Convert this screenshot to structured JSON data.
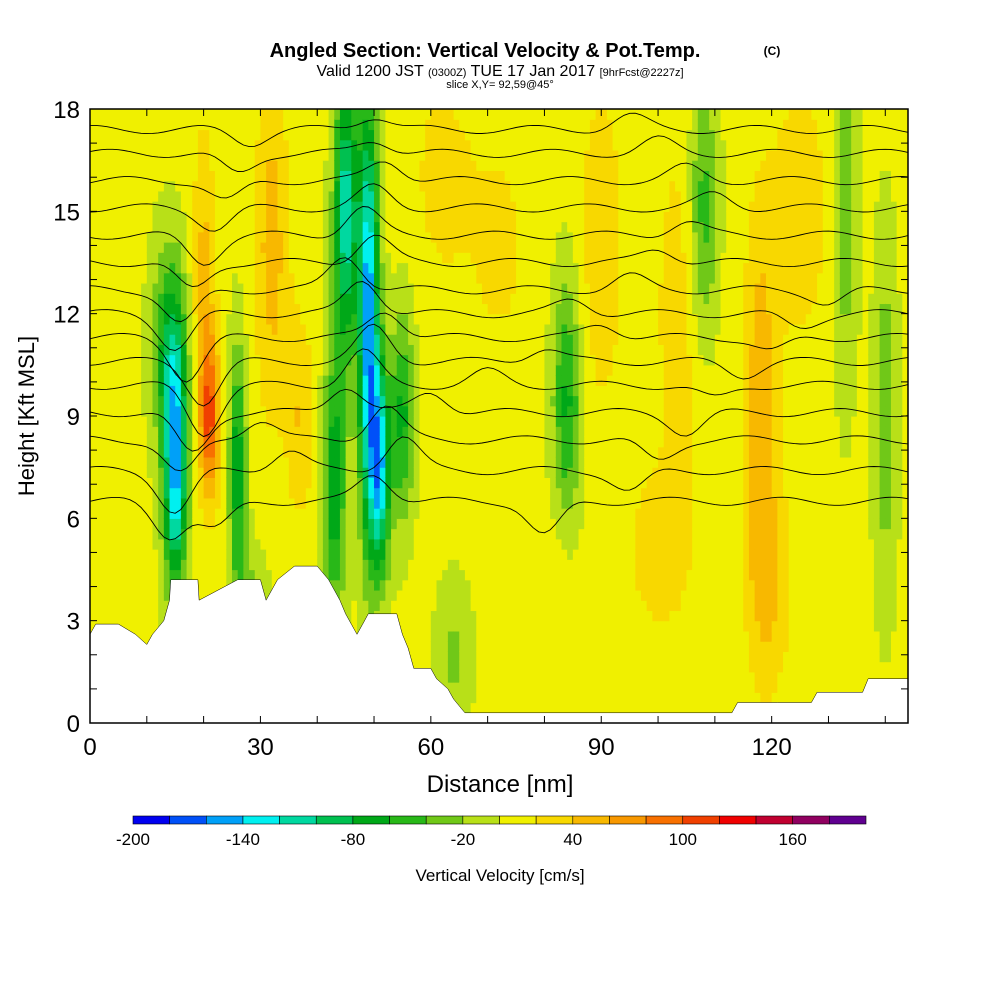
{
  "chart_data": {
    "type": "heatmap",
    "title": "Angled Section: Vertical Velocity & Pot.Temp.",
    "title_unit": "(C)",
    "subtitle": {
      "valid": "Valid 1200 JST",
      "utc": "(0300Z)",
      "date": "TUE 17 Jan 2017",
      "forecast": "[9hrFcst@2227z]"
    },
    "slice": "slice X,Y= 92,59@45°",
    "xlabel": "Distance [nm]",
    "ylabel": "Height [Kft MSL]",
    "xlim": [
      0,
      144
    ],
    "ylim": [
      0,
      18
    ],
    "x_ticks": [
      0,
      30,
      60,
      90,
      120
    ],
    "y_ticks": [
      0,
      3,
      6,
      9,
      12,
      15,
      18
    ],
    "colorbar": {
      "label": "Vertical Velocity [cm/s]",
      "levels": [
        -200,
        -180,
        -160,
        -140,
        -120,
        -100,
        -80,
        -60,
        -40,
        -20,
        0,
        20,
        40,
        60,
        80,
        100,
        120,
        140,
        160,
        180
      ],
      "tick_labels": [
        "-200",
        "-140",
        "-80",
        "-20",
        "40",
        "100",
        "160"
      ],
      "colors": [
        "#0000f0",
        "#0050f8",
        "#00a0f8",
        "#00f0f0",
        "#00d8a0",
        "#00c050",
        "#00a818",
        "#28b818",
        "#70c818",
        "#b8e018",
        "#f0f000",
        "#f8d800",
        "#f8b800",
        "#f89800",
        "#f87000",
        "#f04000",
        "#f00000",
        "#c00030",
        "#900060",
        "#600090"
      ]
    },
    "terrain_kft": [
      [
        0,
        2.6
      ],
      [
        1,
        2.9
      ],
      [
        5,
        2.9
      ],
      [
        8,
        2.6
      ],
      [
        10,
        2.3
      ],
      [
        11,
        2.6
      ],
      [
        13,
        3.0
      ],
      [
        14,
        3.6
      ],
      [
        14.2,
        4.2
      ],
      [
        19,
        4.2
      ],
      [
        19.2,
        3.6
      ],
      [
        26,
        4.2
      ],
      [
        30,
        4.2
      ],
      [
        31,
        3.6
      ],
      [
        33,
        4.2
      ],
      [
        36,
        4.6
      ],
      [
        40,
        4.6
      ],
      [
        42,
        4.2
      ],
      [
        44,
        3.6
      ],
      [
        45,
        3.2
      ],
      [
        46,
        2.9
      ],
      [
        47,
        2.6
      ],
      [
        48,
        2.9
      ],
      [
        49,
        3.2
      ],
      [
        54,
        3.2
      ],
      [
        55,
        2.6
      ],
      [
        56,
        2.2
      ],
      [
        57,
        1.6
      ],
      [
        60,
        1.6
      ],
      [
        61,
        1.3
      ],
      [
        63,
        1.0
      ],
      [
        64,
        0.7
      ],
      [
        65,
        0.5
      ],
      [
        66,
        0.3
      ],
      [
        113,
        0.3
      ],
      [
        114,
        0.6
      ],
      [
        121,
        0.6
      ],
      [
        127,
        0.6
      ],
      [
        128,
        0.9
      ],
      [
        136,
        0.9
      ],
      [
        137,
        1.3
      ],
      [
        144,
        1.3
      ]
    ],
    "theta_contours": [
      {
        "level": 8,
        "h": 6.5,
        "dips": [
          [
            14,
            -0.5
          ],
          [
            22,
            -0.4
          ],
          [
            50,
            0.4
          ],
          [
            80,
            -0.5
          ]
        ]
      },
      {
        "level": 9,
        "h": 7.4,
        "dips": [
          [
            15,
            -0.6
          ],
          [
            35,
            0.3
          ],
          [
            55,
            0.5
          ],
          [
            95,
            -0.3
          ]
        ]
      },
      {
        "level": 10,
        "h": 8.3,
        "dips": [
          [
            16,
            -0.5
          ],
          [
            30,
            0.3
          ],
          [
            52,
            0.5
          ],
          [
            100,
            -0.3
          ]
        ]
      },
      {
        "level": 11,
        "h": 9.1,
        "dips": [
          [
            18,
            -0.6
          ],
          [
            45,
            0.4
          ],
          [
            60,
            0.3
          ],
          [
            105,
            -0.3
          ]
        ]
      },
      {
        "level": 12,
        "h": 9.9,
        "dips": [
          [
            20,
            -0.7
          ],
          [
            48,
            0.5
          ],
          [
            70,
            0.2
          ],
          [
            110,
            -0.2
          ]
        ]
      },
      {
        "level": 13,
        "h": 10.6,
        "dips": [
          [
            20,
            -0.6
          ],
          [
            50,
            0.5
          ],
          [
            80,
            0.2
          ],
          [
            115,
            -0.2
          ]
        ]
      },
      {
        "level": 14,
        "h": 11.3,
        "dips": [
          [
            17,
            -0.6
          ],
          [
            52,
            0.4
          ],
          [
            90,
            0.2
          ],
          [
            120,
            -0.2
          ]
        ]
      },
      {
        "level": 15,
        "h": 12.0,
        "dips": [
          [
            15,
            -0.5
          ],
          [
            48,
            0.5
          ],
          [
            85,
            0.2
          ],
          [
            125,
            -0.2
          ]
        ]
      },
      {
        "level": 16,
        "h": 12.7,
        "dips": [
          [
            16,
            -0.5
          ],
          [
            45,
            0.5
          ],
          [
            95,
            0.2
          ],
          [
            130,
            -0.2
          ]
        ]
      },
      {
        "level": 17,
        "h": 13.5,
        "dips": [
          [
            18,
            -0.4
          ],
          [
            50,
            0.4
          ],
          [
            100,
            0.2
          ]
        ]
      },
      {
        "level": 18,
        "h": 14.3,
        "dips": [
          [
            20,
            -0.4
          ],
          [
            48,
            0.4
          ],
          [
            105,
            0.2
          ]
        ]
      },
      {
        "level": 19,
        "h": 15.1,
        "dips": [
          [
            22,
            -0.3
          ],
          [
            50,
            0.3
          ],
          [
            110,
            0.2
          ]
        ]
      },
      {
        "level": 20,
        "h": 15.9,
        "dips": [
          [
            24,
            -0.3
          ],
          [
            52,
            0.3
          ],
          [
            105,
            0.2
          ]
        ]
      },
      {
        "level": 21,
        "h": 16.7,
        "dips": [
          [
            26,
            -0.3
          ],
          [
            50,
            0.2
          ],
          [
            100,
            0.2
          ]
        ]
      },
      {
        "level": 22,
        "h": 17.4,
        "dips": [
          [
            28,
            -0.2
          ],
          [
            50,
            0.2
          ],
          [
            95,
            0.2
          ]
        ]
      }
    ]
  }
}
